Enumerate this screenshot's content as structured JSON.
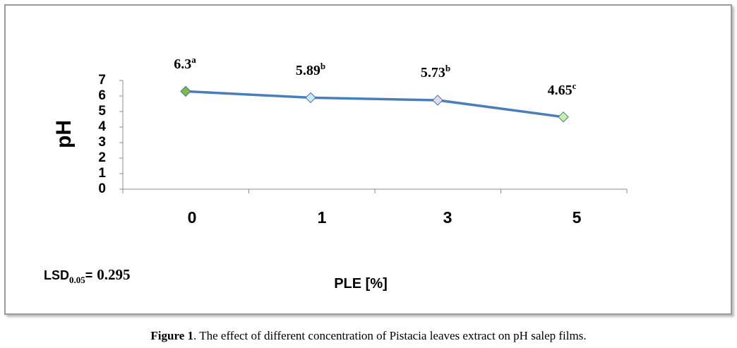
{
  "chart_data": {
    "type": "line",
    "categories": [
      "0",
      "1",
      "3",
      "5"
    ],
    "series": [
      {
        "values": [
          6.3,
          5.89,
          5.73,
          4.65
        ],
        "color": "#4A7EBB",
        "marker": "diamond",
        "marker_colors": [
          "#7DBB4A",
          "#C9E8FA",
          "#DDDDEE",
          "#C6F2A0"
        ]
      }
    ],
    "data_labels": [
      {
        "value": "6.3",
        "letter": "a"
      },
      {
        "value": "5.89",
        "letter": "b"
      },
      {
        "value": "5.73",
        "letter": "b"
      },
      {
        "value": "4.65",
        "letter": "c"
      }
    ],
    "xlabel": "PLE [%]",
    "ylabel": "pH",
    "ylim": [
      0,
      7
    ],
    "yticks": [
      0,
      1,
      2,
      3,
      4,
      5,
      6,
      7
    ],
    "grid": false,
    "annotation": {
      "label": "LSD",
      "subscript": "0.05",
      "equals": "=",
      "value": "0.295"
    }
  },
  "caption": {
    "label": "Figure 1",
    "text": ". The effect of different concentration of Pistacia leaves extract on pH salep films."
  }
}
